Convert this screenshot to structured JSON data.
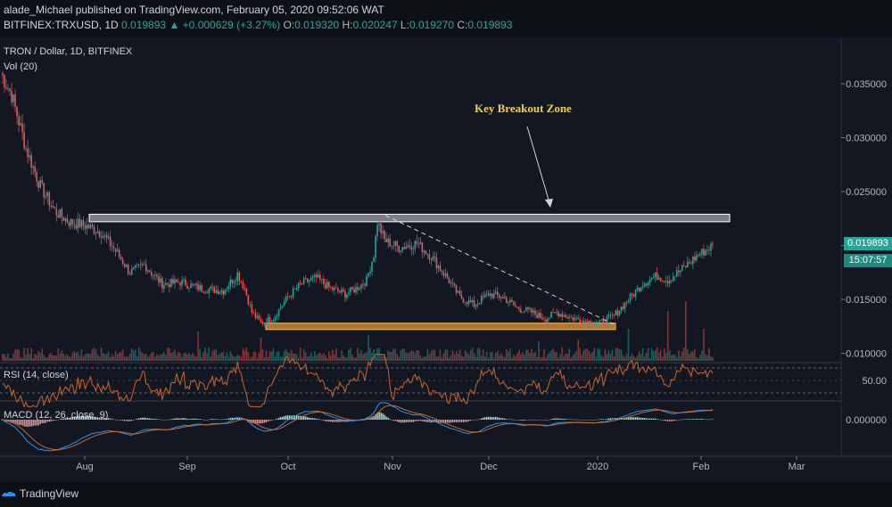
{
  "header": {
    "publish_user": "alade_Michael",
    "publish_text": "published on TradingView.com, February 05, 2020 09:52:06 WAT",
    "symbol": "BITFINEX:TRXUSD, 1D",
    "last": "0.019893",
    "change": "+0.000629 (+3.27%)",
    "o_label": "O:",
    "o_value": "0.019320",
    "h_label": "H:",
    "h_value": "0.020247",
    "l_label": "L:",
    "l_value": "0.019270",
    "c_label": "C:",
    "c_value": "0.019893"
  },
  "legend": {
    "title": "TRON / Dollar, 1D, BITFINEX",
    "volume": "Vol (20)",
    "rsi": "RSI (14, close)",
    "macd": "MACD (12, 26, close, 9)"
  },
  "annotation": {
    "text": "Key Breakout Zone"
  },
  "price_tags": {
    "current_price": "0.019893",
    "countdown": "15:07:57"
  },
  "footer": {
    "brand": "TradingView"
  },
  "colors": {
    "up": "#26a69a",
    "down": "#ef5350",
    "rsi": "#c9662a",
    "macd": "#2196f3",
    "signal": "#c9662a",
    "support_zone": "#e69a3c",
    "resistance_zone": "#d1d4dc",
    "annotation": "#f2d03b"
  },
  "chart_data": {
    "type": "candlestick",
    "symbol": "TRXUSD",
    "interval": "1D",
    "price_axis": {
      "ticks": [
        "0.035000",
        "0.030000",
        "0.025000",
        "0.020000",
        "0.015000",
        "0.010000"
      ],
      "ylim": [
        0.0093,
        0.0388
      ]
    },
    "time_axis": {
      "ticks": [
        "Aug",
        "Sep",
        "Oct",
        "Nov",
        "Dec",
        "2020",
        "Feb",
        "Mar"
      ]
    },
    "rsi_axis": {
      "ticks": [
        "50.00"
      ]
    },
    "macd_axis": {
      "ticks": [
        "0.000000"
      ]
    },
    "zones": [
      {
        "name": "resistance",
        "low": 0.0222,
        "high": 0.0229
      },
      {
        "name": "support",
        "low": 0.0122,
        "high": 0.0128
      }
    ],
    "trendline": {
      "from": 0.0228,
      "to": 0.0127
    },
    "anchors": [
      [
        0,
        0.036
      ],
      [
        6,
        0.034
      ],
      [
        14,
        0.029
      ],
      [
        22,
        0.0255
      ],
      [
        30,
        0.0232
      ],
      [
        38,
        0.0222
      ],
      [
        48,
        0.0218
      ],
      [
        56,
        0.0212
      ],
      [
        64,
        0.0195
      ],
      [
        72,
        0.0175
      ],
      [
        80,
        0.0182
      ],
      [
        90,
        0.0164
      ],
      [
        100,
        0.0166
      ],
      [
        112,
        0.016
      ],
      [
        124,
        0.0158
      ],
      [
        132,
        0.0174
      ],
      [
        136,
        0.016
      ],
      [
        140,
        0.0138
      ],
      [
        145,
        0.0128
      ],
      [
        152,
        0.0133
      ],
      [
        160,
        0.0152
      ],
      [
        168,
        0.0165
      ],
      [
        176,
        0.017
      ],
      [
        184,
        0.016
      ],
      [
        192,
        0.0155
      ],
      [
        198,
        0.016
      ],
      [
        204,
        0.0168
      ],
      [
        208,
        0.0192
      ],
      [
        210,
        0.0222
      ],
      [
        214,
        0.0205
      ],
      [
        222,
        0.0198
      ],
      [
        232,
        0.0202
      ],
      [
        240,
        0.019
      ],
      [
        248,
        0.0172
      ],
      [
        256,
        0.0152
      ],
      [
        264,
        0.0145
      ],
      [
        272,
        0.0155
      ],
      [
        280,
        0.0152
      ],
      [
        288,
        0.0142
      ],
      [
        296,
        0.0138
      ],
      [
        304,
        0.0132
      ],
      [
        310,
        0.0138
      ],
      [
        318,
        0.0133
      ],
      [
        326,
        0.013
      ],
      [
        334,
        0.0128
      ],
      [
        342,
        0.0135
      ],
      [
        350,
        0.015
      ],
      [
        358,
        0.0165
      ],
      [
        366,
        0.0172
      ],
      [
        372,
        0.0168
      ],
      [
        380,
        0.0178
      ],
      [
        388,
        0.019
      ],
      [
        396,
        0.0199
      ]
    ]
  }
}
